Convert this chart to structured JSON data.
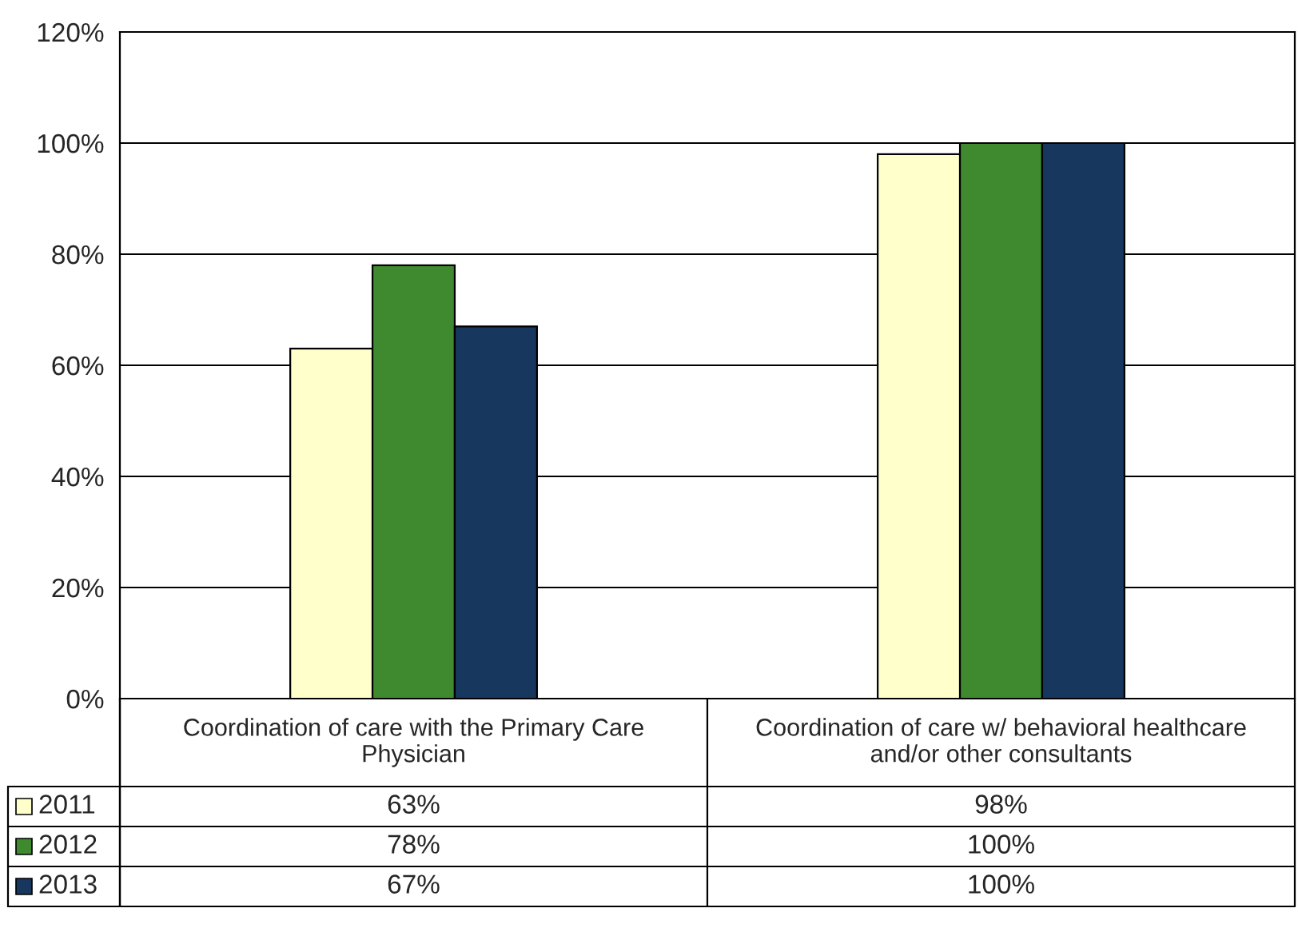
{
  "chart_data": {
    "type": "bar",
    "categories": [
      "Coordination of care with the Primary Care Physician",
      "Coordination of care w/ behavioral healthcare and/or other consultants"
    ],
    "series": [
      {
        "name": "2011",
        "color": "#ffffcc",
        "values": [
          63,
          98
        ],
        "value_labels": [
          "63%",
          "98%"
        ]
      },
      {
        "name": "2012",
        "color": "#3f8a2e",
        "values": [
          78,
          100
        ],
        "value_labels": [
          "78%",
          "100%"
        ]
      },
      {
        "name": "2013",
        "color": "#17375e",
        "values": [
          67,
          100
        ],
        "value_labels": [
          "67%",
          "100%"
        ]
      }
    ],
    "ylim": [
      0,
      120
    ],
    "yticks": [
      {
        "value": 0,
        "label": "0%"
      },
      {
        "value": 20,
        "label": "20%"
      },
      {
        "value": 40,
        "label": "40%"
      },
      {
        "value": 60,
        "label": "60%"
      },
      {
        "value": 80,
        "label": "80%"
      },
      {
        "value": 100,
        "label": "100%"
      },
      {
        "value": 120,
        "label": "120%"
      }
    ],
    "grid": "y",
    "legend": "bottom left"
  }
}
